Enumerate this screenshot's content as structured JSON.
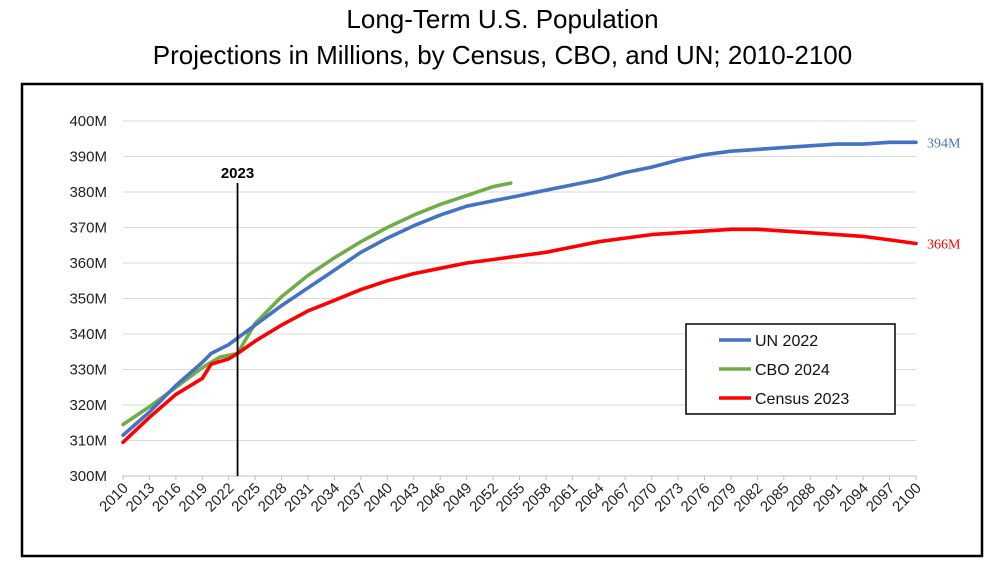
{
  "chart_data": {
    "type": "line",
    "title_line1": "Long-Term U.S. Population",
    "title_line2": "Projections in Millions, by Census, CBO, and UN; 2010-2100",
    "xlabel": "",
    "ylabel": "",
    "xlim": [
      2010,
      2100
    ],
    "ylim": [
      300,
      400
    ],
    "y_ticks": [
      300,
      310,
      320,
      330,
      340,
      350,
      360,
      370,
      380,
      390,
      400
    ],
    "y_tick_labels": [
      "300M",
      "310M",
      "320M",
      "330M",
      "340M",
      "350M",
      "360M",
      "370M",
      "380M",
      "390M",
      "400M"
    ],
    "x_ticks": [
      2010,
      2013,
      2016,
      2019,
      2022,
      2025,
      2028,
      2031,
      2034,
      2037,
      2040,
      2043,
      2046,
      2049,
      2052,
      2055,
      2058,
      2061,
      2064,
      2067,
      2070,
      2073,
      2076,
      2079,
      2082,
      2085,
      2088,
      2091,
      2094,
      2097,
      2100
    ],
    "grid": true,
    "legend_position": "right",
    "vertical_marker": {
      "x": 2023,
      "label": "2023"
    },
    "series": [
      {
        "name": "UN 2022",
        "color": "#4472C4",
        "end_label": "394M",
        "x": [
          2010,
          2013,
          2016,
          2019,
          2020,
          2022,
          2025,
          2028,
          2031,
          2034,
          2037,
          2040,
          2043,
          2046,
          2049,
          2052,
          2055,
          2058,
          2061,
          2064,
          2067,
          2070,
          2073,
          2076,
          2079,
          2082,
          2085,
          2088,
          2091,
          2094,
          2097,
          2100
        ],
        "y": [
          311.5,
          318,
          325.5,
          332,
          334.5,
          337,
          342.5,
          348,
          353,
          358,
          363,
          367,
          370.5,
          373.5,
          376,
          377.5,
          379,
          380.5,
          382,
          383.5,
          385.5,
          387,
          389,
          390.5,
          391.5,
          392,
          392.5,
          393,
          393.5,
          393.5,
          394,
          394
        ]
      },
      {
        "name": "CBO 2024",
        "color": "#70AD47",
        "end_label": "",
        "x": [
          2010,
          2013,
          2016,
          2019,
          2021,
          2022,
          2023,
          2025,
          2028,
          2031,
          2034,
          2037,
          2040,
          2043,
          2046,
          2049,
          2052,
          2054
        ],
        "y": [
          314.5,
          319.5,
          325,
          330.5,
          333.5,
          334,
          334.5,
          343,
          350.5,
          356.5,
          361.5,
          366,
          370,
          373.5,
          376.5,
          379,
          381.5,
          382.5
        ]
      },
      {
        "name": "Census 2023",
        "color": "#FF0000",
        "end_label": "366M",
        "x": [
          2010,
          2013,
          2016,
          2019,
          2020,
          2022,
          2023,
          2025,
          2028,
          2031,
          2034,
          2037,
          2040,
          2043,
          2046,
          2049,
          2052,
          2055,
          2058,
          2061,
          2064,
          2067,
          2070,
          2073,
          2076,
          2079,
          2082,
          2085,
          2088,
          2091,
          2094,
          2097,
          2100
        ],
        "y": [
          309.5,
          316.5,
          323,
          327.5,
          331.5,
          333,
          334.5,
          338,
          342.5,
          346.5,
          349.5,
          352.5,
          355,
          357,
          358.5,
          360,
          361,
          362,
          363,
          364.5,
          366,
          367,
          368,
          368.5,
          369,
          369.5,
          369.5,
          369,
          368.5,
          368,
          367.5,
          366.5,
          365.5
        ]
      }
    ]
  }
}
